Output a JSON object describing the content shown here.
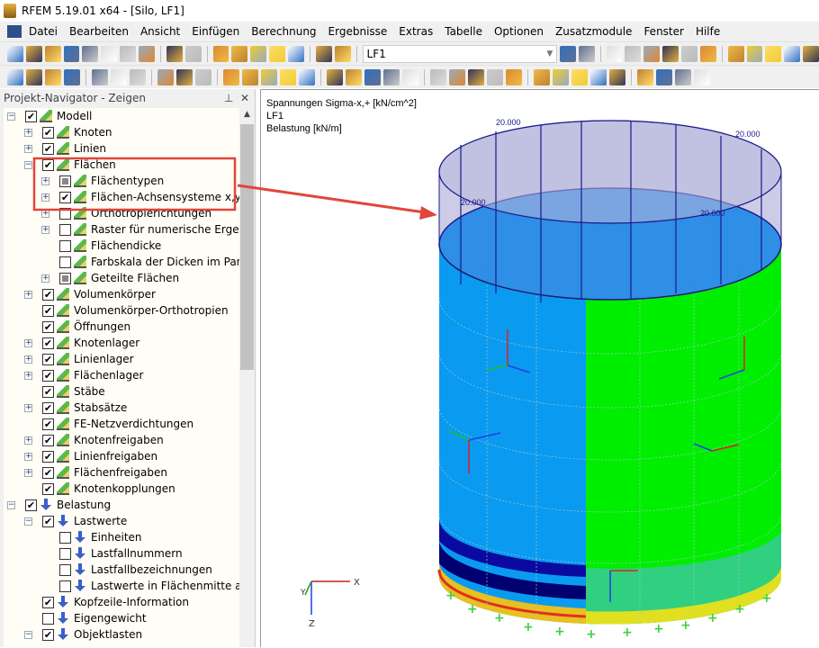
{
  "window": {
    "title": "RFEM 5.19.01 x64 - [Silo, LF1]"
  },
  "menu": [
    "Datei",
    "Bearbeiten",
    "Ansicht",
    "Einfügen",
    "Berechnung",
    "Ergebnisse",
    "Extras",
    "Tabelle",
    "Optionen",
    "Zusatzmodule",
    "Fenster",
    "Hilfe"
  ],
  "toolbar": {
    "loadcase_value": "LF1"
  },
  "navigator": {
    "title": "Projekt-Navigator - Zeigen",
    "items": [
      {
        "label": "Modell",
        "level": 0,
        "exp": "minus",
        "check": "checked",
        "icon": "model"
      },
      {
        "label": "Knoten",
        "level": 1,
        "exp": "plus",
        "check": "checked",
        "icon": "model"
      },
      {
        "label": "Linien",
        "level": 1,
        "exp": "plus",
        "check": "checked",
        "icon": "model"
      },
      {
        "label": "Flächen",
        "level": 1,
        "exp": "minus",
        "check": "checked",
        "icon": "model"
      },
      {
        "label": "Flächentypen",
        "level": 2,
        "exp": "plus",
        "check": "partial",
        "icon": "model"
      },
      {
        "label": "Flächen-Achsensysteme x,y,z",
        "level": 2,
        "exp": "plus",
        "check": "checked",
        "icon": "model"
      },
      {
        "label": "Orthotropierichtungen",
        "level": 2,
        "exp": "plus",
        "check": "unchecked",
        "icon": "model"
      },
      {
        "label": "Raster für numerische Ergebnis",
        "level": 2,
        "exp": "plus",
        "check": "unchecked",
        "icon": "model"
      },
      {
        "label": "Flächendicke",
        "level": 2,
        "exp": "none",
        "check": "unchecked",
        "icon": "model"
      },
      {
        "label": "Farbskala der Dicken im Panel",
        "level": 2,
        "exp": "none",
        "check": "unchecked",
        "icon": "model"
      },
      {
        "label": "Geteilte Flächen",
        "level": 2,
        "exp": "plus",
        "check": "partial",
        "icon": "model"
      },
      {
        "label": "Volumenkörper",
        "level": 1,
        "exp": "plus",
        "check": "checked",
        "icon": "model"
      },
      {
        "label": "Volumenkörper-Orthotropien",
        "level": 1,
        "exp": "none",
        "check": "checked",
        "icon": "model"
      },
      {
        "label": "Öffnungen",
        "level": 1,
        "exp": "none",
        "check": "checked",
        "icon": "model"
      },
      {
        "label": "Knotenlager",
        "level": 1,
        "exp": "plus",
        "check": "checked",
        "icon": "model"
      },
      {
        "label": "Linienlager",
        "level": 1,
        "exp": "plus",
        "check": "checked",
        "icon": "model"
      },
      {
        "label": "Flächenlager",
        "level": 1,
        "exp": "plus",
        "check": "checked",
        "icon": "model"
      },
      {
        "label": "Stäbe",
        "level": 1,
        "exp": "none",
        "check": "checked",
        "icon": "model"
      },
      {
        "label": "Stabsätze",
        "level": 1,
        "exp": "plus",
        "check": "checked",
        "icon": "model"
      },
      {
        "label": "FE-Netzverdichtungen",
        "level": 1,
        "exp": "none",
        "check": "checked",
        "icon": "model"
      },
      {
        "label": "Knotenfreigaben",
        "level": 1,
        "exp": "plus",
        "check": "checked",
        "icon": "model"
      },
      {
        "label": "Linienfreigaben",
        "level": 1,
        "exp": "plus",
        "check": "checked",
        "icon": "model"
      },
      {
        "label": "Flächenfreigaben",
        "level": 1,
        "exp": "plus",
        "check": "checked",
        "icon": "model"
      },
      {
        "label": "Knotenkopplungen",
        "level": 1,
        "exp": "none",
        "check": "checked",
        "icon": "model"
      },
      {
        "label": "Belastung",
        "level": 0,
        "exp": "minus",
        "check": "checked",
        "icon": "load"
      },
      {
        "label": "Lastwerte",
        "level": 1,
        "exp": "minus",
        "check": "checked",
        "icon": "load"
      },
      {
        "label": "Einheiten",
        "level": 2,
        "exp": "none",
        "check": "unchecked",
        "icon": "load"
      },
      {
        "label": "Lastfallnummern",
        "level": 2,
        "exp": "none",
        "check": "unchecked",
        "icon": "load"
      },
      {
        "label": "Lastfallbezeichnungen",
        "level": 2,
        "exp": "none",
        "check": "unchecked",
        "icon": "load"
      },
      {
        "label": "Lastwerte in Flächenmitte anzei",
        "level": 2,
        "exp": "none",
        "check": "unchecked",
        "icon": "load"
      },
      {
        "label": "Kopfzeile-Information",
        "level": 1,
        "exp": "none",
        "check": "checked",
        "icon": "load"
      },
      {
        "label": "Eigengewicht",
        "level": 1,
        "exp": "none",
        "check": "unchecked",
        "icon": "load"
      },
      {
        "label": "Objektlasten",
        "level": 1,
        "exp": "minus",
        "check": "checked",
        "icon": "load"
      }
    ]
  },
  "view": {
    "info": [
      "Spannungen Sigma-x,+ [kN/cm^2]",
      "LF1",
      "Belastung [kN/m]"
    ],
    "load_labels": [
      "20.000",
      "20.000",
      "20.000",
      "20.000"
    ],
    "axis_labels": {
      "x": "X",
      "y": "Y",
      "z": "Z"
    },
    "colors": {
      "blue": "#0a9af0",
      "green": "#00ee00",
      "highlight": "#e0463c",
      "load": "#1a1a8c"
    }
  }
}
